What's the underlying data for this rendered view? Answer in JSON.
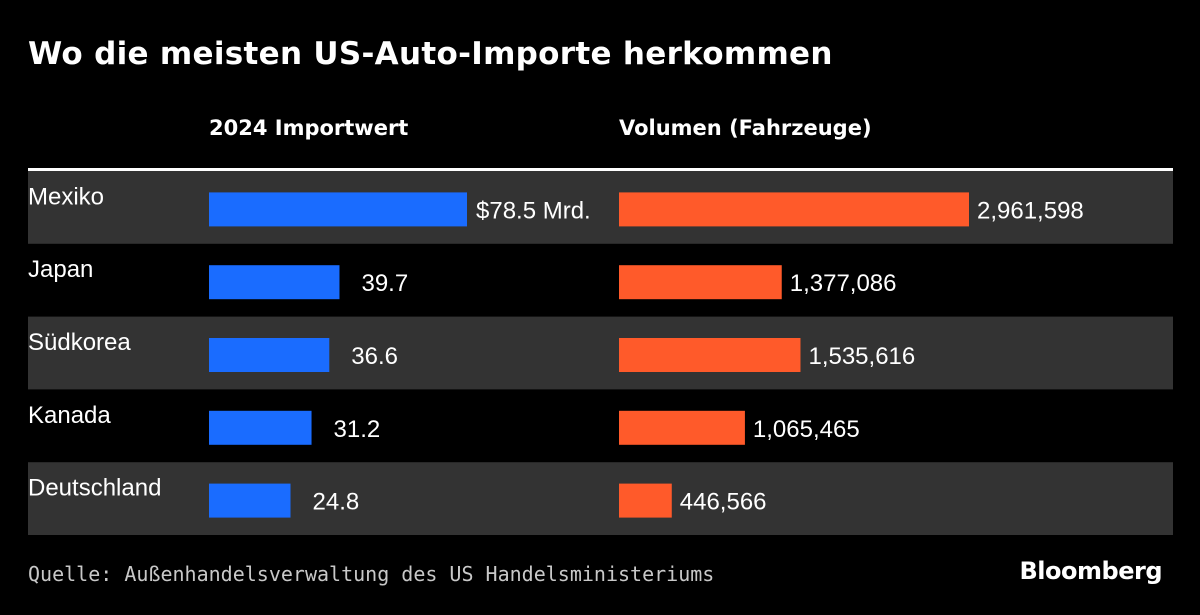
{
  "title": "Wo die meisten US-Auto-Importe herkommen",
  "source": "Quelle: Außenhandelsverwaltung des US Handelsministeriums",
  "brand": "Bloomberg",
  "colors": {
    "background": "#000000",
    "row_band": "#333333",
    "import_value_bar": "#1a6cff",
    "volume_bar": "#ff5a2a",
    "text": "#ffffff"
  },
  "chart_data": {
    "type": "bar",
    "categories": [
      "Mexiko",
      "Japan",
      "Südkorea",
      "Kanada",
      "Deutschland"
    ],
    "series": [
      {
        "name": "2024 Importwert",
        "values": [
          78.5,
          39.7,
          36.6,
          31.2,
          24.8
        ],
        "labels": [
          "$78.5 Mrd.",
          "39.7",
          "36.6",
          "31.2",
          "24.8"
        ]
      },
      {
        "name": "Volumen (Fahrzeuge)",
        "values": [
          2961598,
          1377086,
          1535616,
          1065465,
          446566
        ],
        "labels": [
          "2,961,598",
          "1,377,086",
          "1,535,616",
          "1,065,465",
          "446,566"
        ]
      }
    ]
  }
}
